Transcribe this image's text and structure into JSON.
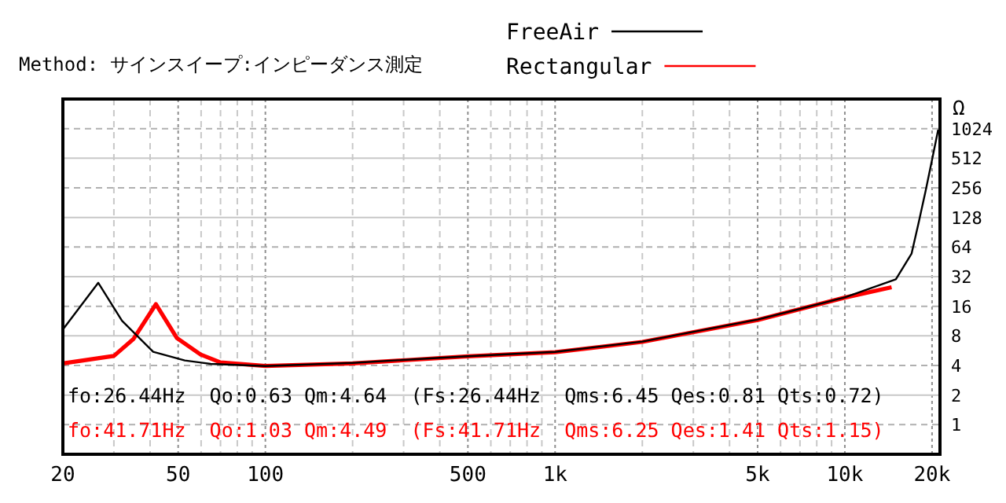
{
  "chart_data": {
    "type": "line",
    "title": "Method: サインスイープ:インピーダンス測定",
    "ylabel": "Ω",
    "log": "xy",
    "grid": true,
    "legend": "top",
    "marker": "none",
    "line_style": "solid",
    "xlim": [
      20,
      21300
    ],
    "ylim": [
      0.5,
      2048
    ],
    "xticks": [
      20,
      {
        "value": 30,
        "label": null
      },
      {
        "value": 40,
        "label": null
      },
      50,
      {
        "value": 60,
        "label": null
      },
      {
        "value": 70,
        "label": null
      },
      {
        "value": 80,
        "label": null
      },
      {
        "value": 90,
        "label": null
      },
      100,
      {
        "value": 200,
        "label": null
      },
      {
        "value": 300,
        "label": null
      },
      {
        "value": 400,
        "label": null
      },
      500,
      {
        "value": 600,
        "label": null
      },
      {
        "value": 700,
        "label": null
      },
      {
        "value": 800,
        "label": null
      },
      {
        "value": 900,
        "label": null
      },
      {
        "value": 1000,
        "label": "1k"
      },
      {
        "value": 2000,
        "label": null
      },
      {
        "value": 3000,
        "label": null
      },
      {
        "value": 4000,
        "label": null
      },
      {
        "value": 5000,
        "label": "5k"
      },
      {
        "value": 6000,
        "label": null
      },
      {
        "value": 7000,
        "label": null
      },
      {
        "value": 8000,
        "label": null
      },
      {
        "value": 9000,
        "label": null
      },
      {
        "value": 10000,
        "label": "10k"
      },
      {
        "value": 20000,
        "label": "20k"
      }
    ],
    "yticks": [
      1,
      2,
      4,
      8,
      16,
      32,
      64,
      128,
      256,
      512,
      1024
    ],
    "series": [
      {
        "name": "FreeAir",
        "color": "#000000",
        "x": [
          20,
          26.5,
          32,
          41,
          52.7,
          64.7,
          100,
          200,
          500,
          1000,
          2000,
          5000,
          10000,
          15000,
          17000,
          18000,
          19000,
          20000,
          21000
        ],
        "values": [
          9.3,
          27.7,
          11.4,
          5.5,
          4.5,
          4.15,
          3.95,
          4.25,
          4.97,
          5.5,
          7.0,
          11.7,
          19.7,
          30.1,
          55,
          115,
          238,
          494,
          1000
        ]
      },
      {
        "name": "Rectangular",
        "color": "#ff0000",
        "x": [
          20,
          30,
          35,
          41.9,
          49.5,
          59.8,
          70,
          100,
          200,
          500,
          1000,
          2000,
          5000,
          10000,
          14500
        ],
        "values": [
          4.2,
          5.0,
          7.4,
          16.8,
          7.6,
          5.16,
          4.3,
          3.95,
          4.2,
          4.95,
          5.45,
          6.95,
          11.6,
          19.6,
          25
        ]
      }
    ],
    "annotations": [
      "fo:26.44Hz  Qo:0.63 Qm:4.64  (Fs:26.44Hz  Qms:6.45 Qes:0.81 Qts:0.72)",
      "fo:41.71Hz  Qo:1.03 Qm:4.49  (Fs:41.71Hz  Qms:6.25 Qes:1.41 Qts:1.15)"
    ]
  }
}
